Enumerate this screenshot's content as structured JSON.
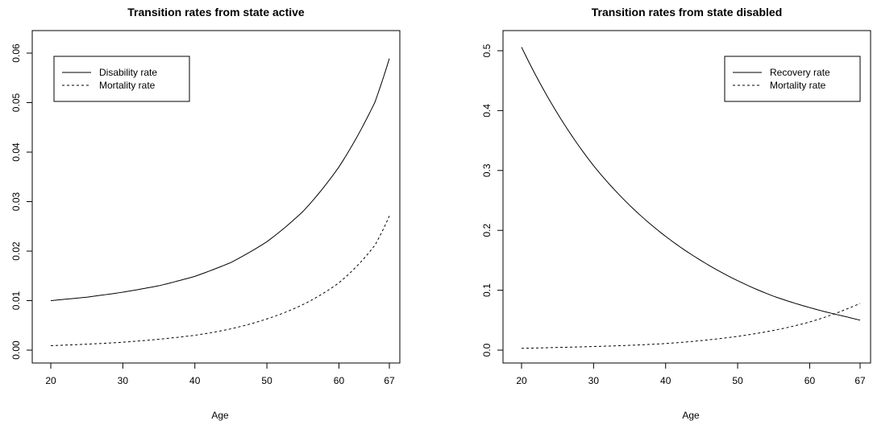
{
  "chart_data": [
    {
      "type": "line",
      "title": "Transition rates from state active",
      "xlabel": "Age",
      "ylabel": "",
      "xlim": [
        20,
        67
      ],
      "ylim": [
        0,
        0.06
      ],
      "x_ticks": [
        20,
        30,
        40,
        50,
        60,
        67
      ],
      "y_ticks": [
        "0.00",
        "0.01",
        "0.02",
        "0.03",
        "0.04",
        "0.05",
        "0.06"
      ],
      "legend_position": "top-left",
      "grid": false,
      "series": [
        {
          "name": "Disability rate",
          "line_style": "solid",
          "color": "#000000",
          "x": [
            20,
            25,
            30,
            35,
            40,
            45,
            50,
            55,
            60,
            65,
            67
          ],
          "y": [
            0.01,
            0.0107,
            0.0117,
            0.013,
            0.0149,
            0.0177,
            0.0219,
            0.028,
            0.037,
            0.0501,
            0.0589
          ]
        },
        {
          "name": "Mortality rate",
          "line_style": "dashed",
          "color": "#000000",
          "x": [
            20,
            25,
            30,
            35,
            40,
            45,
            50,
            55,
            60,
            65,
            67
          ],
          "y": [
            0.0009,
            0.0012,
            0.0016,
            0.0022,
            0.003,
            0.0043,
            0.0063,
            0.0092,
            0.0136,
            0.0212,
            0.0271
          ]
        }
      ]
    },
    {
      "type": "line",
      "title": "Transition rates from state disabled",
      "xlabel": "Age",
      "ylabel": "",
      "xlim": [
        20,
        67
      ],
      "ylim": [
        0,
        0.5
      ],
      "x_ticks": [
        20,
        30,
        40,
        50,
        60,
        67
      ],
      "y_ticks": [
        "0.0",
        "0.1",
        "0.2",
        "0.3",
        "0.4",
        "0.5"
      ],
      "legend_position": "top-right",
      "grid": false,
      "series": [
        {
          "name": "Recovery rate",
          "line_style": "solid",
          "color": "#000000",
          "x": [
            20,
            25,
            30,
            35,
            40,
            45,
            50,
            55,
            60,
            65,
            67
          ],
          "y": [
            0.506,
            0.395,
            0.308,
            0.242,
            0.19,
            0.149,
            0.116,
            0.09,
            0.071,
            0.056,
            0.05
          ]
        },
        {
          "name": "Mortality rate",
          "line_style": "dashed",
          "color": "#000000",
          "x": [
            20,
            25,
            30,
            35,
            40,
            45,
            50,
            55,
            60,
            65,
            67
          ],
          "y": [
            0.003,
            0.0045,
            0.006,
            0.008,
            0.011,
            0.016,
            0.023,
            0.033,
            0.047,
            0.068,
            0.078
          ]
        }
      ]
    }
  ]
}
